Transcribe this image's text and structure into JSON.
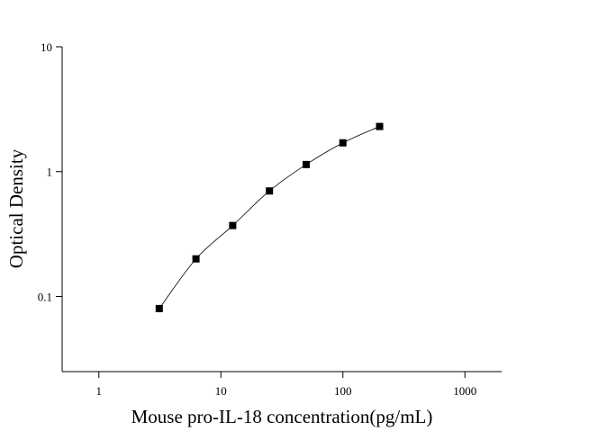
{
  "chart_data": {
    "type": "scatter",
    "x_label": "Mouse pro-IL-18 concentration(pg/mL)",
    "y_label": "Optical Density",
    "xscale": "log",
    "yscale": "log",
    "xlim": [
      0.5,
      2000
    ],
    "ylim": [
      0.025,
      10
    ],
    "xticks": [
      1,
      10,
      100,
      1000
    ],
    "yticks": [
      0.1,
      1,
      10
    ],
    "fit_line": true,
    "series": [
      {
        "color": "#000000",
        "x": [
          3.125,
          6.25,
          12.5,
          25,
          50,
          100,
          200
        ],
        "values": [
          0.08,
          0.2,
          0.37,
          0.7,
          1.14,
          1.7,
          2.3
        ]
      }
    ]
  }
}
